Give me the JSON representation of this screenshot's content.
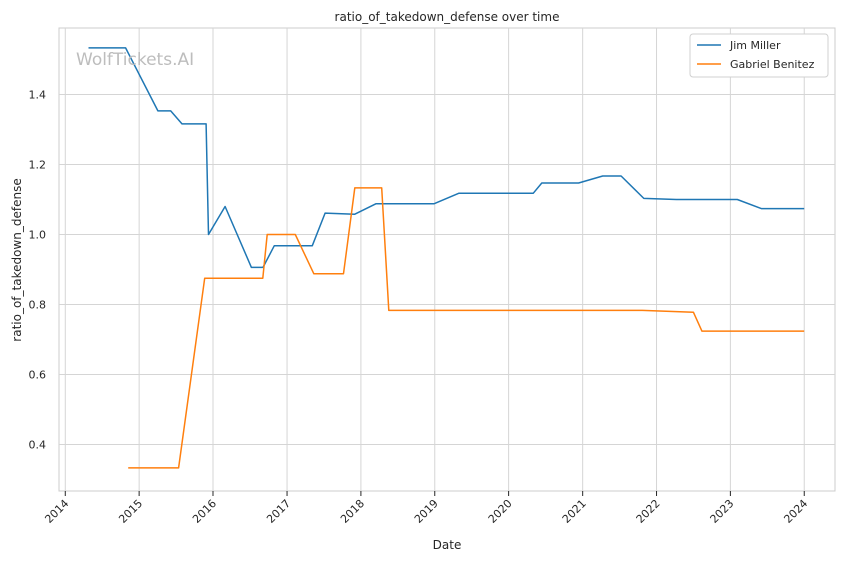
{
  "chart_data": {
    "type": "line",
    "title": "ratio_of_takedown_defense over time",
    "xlabel": "Date",
    "ylabel": "ratio_of_takedown_defense",
    "watermark": "WolfTickets.AI",
    "x_ticks": [
      "2014",
      "2015",
      "2016",
      "2017",
      "2018",
      "2019",
      "2020",
      "2021",
      "2022",
      "2023",
      "2024"
    ],
    "y_ticks": [
      0.4,
      0.6,
      0.8,
      1.0,
      1.2,
      1.4
    ],
    "xlim": [
      "2013-12-01",
      "2024-06-01"
    ],
    "ylim": [
      0.267,
      1.59
    ],
    "grid": true,
    "legend_position": "top-right",
    "series": [
      {
        "name": "Jim Miller",
        "color": "#1f77b4",
        "points": [
          [
            "2014-04-26",
            1.533
          ],
          [
            "2014-10-26",
            1.533
          ],
          [
            "2015-04-04",
            1.353
          ],
          [
            "2015-06-06",
            1.353
          ],
          [
            "2015-08-01",
            1.316
          ],
          [
            "2015-11-28",
            1.316
          ],
          [
            "2015-12-10",
            1.0
          ],
          [
            "2016-03-01",
            1.08
          ],
          [
            "2016-07-09",
            0.906
          ],
          [
            "2016-09-04",
            0.906
          ],
          [
            "2016-10-30",
            0.968
          ],
          [
            "2017-05-06",
            0.968
          ],
          [
            "2017-07-08",
            1.061
          ],
          [
            "2017-12-02",
            1.058
          ],
          [
            "2018-03-17",
            1.088
          ],
          [
            "2018-12-29",
            1.088
          ],
          [
            "2019-05-01",
            1.118
          ],
          [
            "2020-05-02",
            1.118
          ],
          [
            "2020-06-13",
            1.147
          ],
          [
            "2020-12-12",
            1.147
          ],
          [
            "2021-04-10",
            1.167
          ],
          [
            "2021-07-10",
            1.167
          ],
          [
            "2021-10-30",
            1.103
          ],
          [
            "2022-04-09",
            1.1
          ],
          [
            "2023-02-04",
            1.1
          ],
          [
            "2023-06-03",
            1.074
          ],
          [
            "2024-01-01",
            1.074
          ]
        ]
      },
      {
        "name": "Gabriel Benitez",
        "color": "#ff7f0e",
        "points": [
          [
            "2014-11-08",
            0.333
          ],
          [
            "2015-07-15",
            0.333
          ],
          [
            "2015-11-21",
            0.875
          ],
          [
            "2016-09-03",
            0.875
          ],
          [
            "2016-09-25",
            1.0
          ],
          [
            "2017-02-11",
            1.0
          ],
          [
            "2017-05-13",
            0.888
          ],
          [
            "2017-10-07",
            0.888
          ],
          [
            "2017-12-02",
            1.133
          ],
          [
            "2018-04-14",
            1.133
          ],
          [
            "2018-05-19",
            0.783
          ],
          [
            "2021-10-23",
            0.783
          ],
          [
            "2022-07-02",
            0.778
          ],
          [
            "2022-08-13",
            0.724
          ],
          [
            "2024-01-01",
            0.724
          ]
        ]
      }
    ]
  }
}
